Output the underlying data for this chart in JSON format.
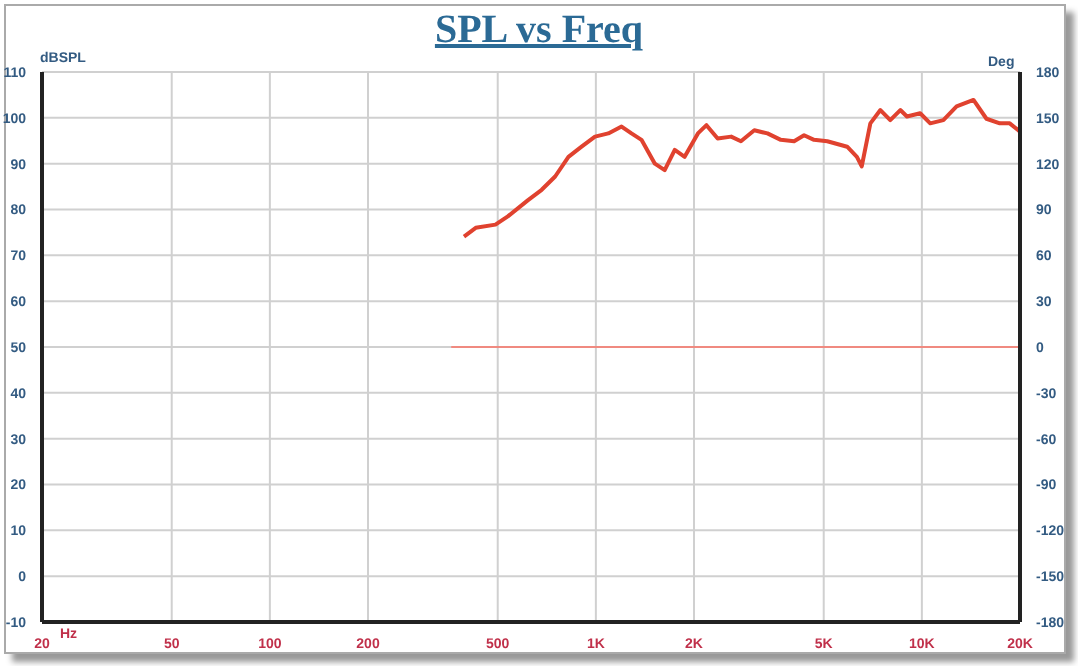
{
  "chart_data": {
    "type": "line",
    "title": "SPL vs Freq",
    "xlabel": "Hz",
    "ylabel": "dBSPL",
    "y2label": "Deg",
    "log": "x",
    "grid": true,
    "marker": "none",
    "line_style": "solid",
    "xlim": [
      20,
      20000
    ],
    "xticks": [
      20,
      50,
      100,
      200,
      500,
      {
        "value": 1000,
        "label": "1K"
      },
      {
        "value": 2000,
        "label": "2K"
      },
      {
        "value": 5000,
        "label": "5K"
      },
      {
        "value": 10000,
        "label": "10K"
      },
      {
        "value": 20000,
        "label": "20K"
      }
    ],
    "ylim": [
      -10,
      110
    ],
    "yticks": [
      -10,
      0,
      10,
      20,
      30,
      40,
      50,
      60,
      70,
      80,
      90,
      100,
      110
    ],
    "y2lim": [
      -180,
      180
    ],
    "y2ticks": [
      -180,
      -150,
      -120,
      -90,
      -60,
      -30,
      0,
      30,
      60,
      90,
      120,
      150,
      180
    ],
    "series": [
      {
        "color": "#e0422f",
        "x": [
          394,
          428,
          492,
          537,
          618,
          682,
          750,
          824,
          904,
          994,
          1092,
          1199,
          1286,
          1380,
          1517,
          1626,
          1746,
          1872,
          2056,
          2184,
          2364,
          2600,
          2786,
          3062,
          3360,
          3692,
          4056,
          4352,
          4668,
          5128,
          5900,
          6320,
          6540,
          6950,
          7460,
          8000,
          8590,
          9000,
          9880,
          10610,
          11640,
          12780,
          14400,
          15780,
          17340,
          18600,
          20000
        ],
        "values": [
          74.1,
          76,
          76.7,
          78.5,
          82,
          84.3,
          87.2,
          91.5,
          93.7,
          95.9,
          96.6,
          98.1,
          96.6,
          95.2,
          90,
          88.6,
          93,
          91.5,
          96.6,
          98.4,
          95.5,
          95.9,
          94.9,
          97.3,
          96.6,
          95.2,
          94.9,
          96.2,
          95.2,
          94.9,
          93.7,
          91.5,
          89.4,
          98.8,
          101.7,
          99.5,
          101.7,
          100.3,
          101,
          98.8,
          99.5,
          102.5,
          103.9,
          99.8,
          98.8,
          98.8,
          97
        ]
      },
      {
        "color": "#f08a80",
        "axis": "y2",
        "x": [
          360,
          20000
        ],
        "values": [
          0,
          0
        ]
      }
    ]
  }
}
